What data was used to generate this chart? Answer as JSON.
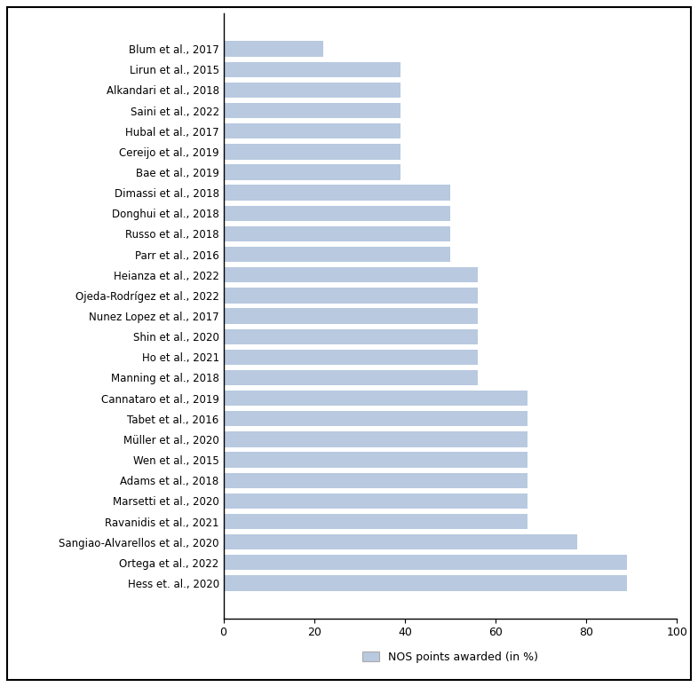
{
  "categories": [
    "Hess et. al., 2020",
    "Ortega et al., 2022",
    "Sangiao-Alvarellos et al., 2020",
    "Ravanidis et al., 2021",
    "Marsetti et al., 2020",
    "Adams et al., 2018",
    "Wen et al., 2015",
    "Müller et al., 2020",
    "Tabet et al., 2016",
    "Cannataro et al., 2019",
    "Manning et al., 2018",
    "Ho et al., 2021",
    "Shin et al., 2020",
    "Nunez Lopez et al., 2017",
    "Ojeda-Rodrígez et al., 2022",
    "Heianza et al., 2022",
    "Parr et al., 2016",
    "Russo et al., 2018",
    "Donghui et al., 2018",
    "Dimassi et al., 2018",
    "Bae et al., 2019",
    "Cereijo et al., 2019",
    "Hubal et al., 2017",
    "Saini et al., 2022",
    "Alkandari et al., 2018",
    "Lirun et al., 2015",
    "Blum et al., 2017"
  ],
  "values": [
    89,
    89,
    78,
    67,
    67,
    67,
    67,
    67,
    67,
    67,
    56,
    56,
    56,
    56,
    56,
    56,
    50,
    50,
    50,
    50,
    39,
    39,
    39,
    39,
    39,
    39,
    22
  ],
  "bar_color": "#b8c9e0",
  "xlim": [
    0,
    100
  ],
  "xticks": [
    0,
    20,
    40,
    60,
    80,
    100
  ],
  "legend_label": "NOS points awarded (in %)",
  "background_color": "#ffffff",
  "label_fontsize": 8.5,
  "tick_fontsize": 9
}
